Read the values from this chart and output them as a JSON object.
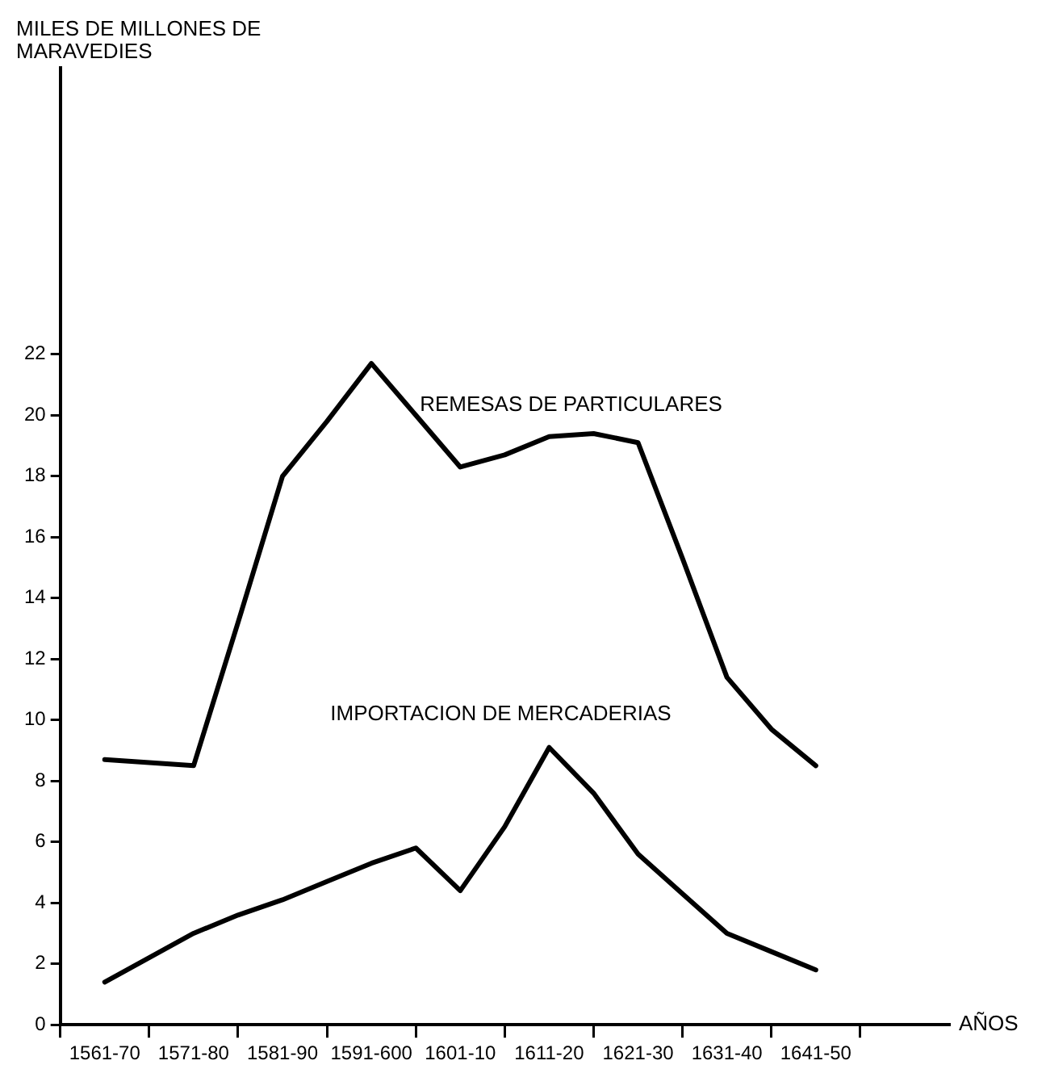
{
  "chart_data": {
    "type": "line",
    "ylabel": "MILES DE MILLONES DE MARAVEDIES",
    "xlabel": "AÑOS",
    "categories": [
      null,
      "1561-70",
      null,
      "1571-80",
      null,
      "1581-90",
      null,
      "1591-600",
      null,
      "1601-10",
      null,
      "1611-20",
      null,
      "1621-30",
      null,
      "1631-40",
      null,
      "1641-50",
      null,
      null,
      null
    ],
    "ylim": [
      0,
      31.4
    ],
    "yticks": [
      0,
      2,
      4,
      6,
      8,
      10,
      12,
      14,
      16,
      18,
      20,
      22
    ],
    "grid": false,
    "legend": false,
    "marker": "none",
    "line_style": "solid",
    "series": [
      {
        "name": "REMESAS DE PARTICULARES",
        "color": "#000000",
        "values": [
          null,
          8.7,
          8.6,
          8.5,
          13.2,
          18,
          19.8,
          21.7,
          20,
          18.3,
          18.7,
          19.3,
          19.4,
          19.1,
          15.3,
          11.4,
          9.7,
          8.5,
          null,
          null,
          null
        ]
      },
      {
        "name": "IMPORTACION DE MERCADERIAS",
        "color": "#000000",
        "values": [
          null,
          1.4,
          2.2,
          3.0,
          3.6,
          4.1,
          4.7,
          5.3,
          5.8,
          4.4,
          6.5,
          9.1,
          7.6,
          5.6,
          4.3,
          3.0,
          2.4,
          1.8,
          null,
          null,
          null
        ]
      }
    ]
  }
}
